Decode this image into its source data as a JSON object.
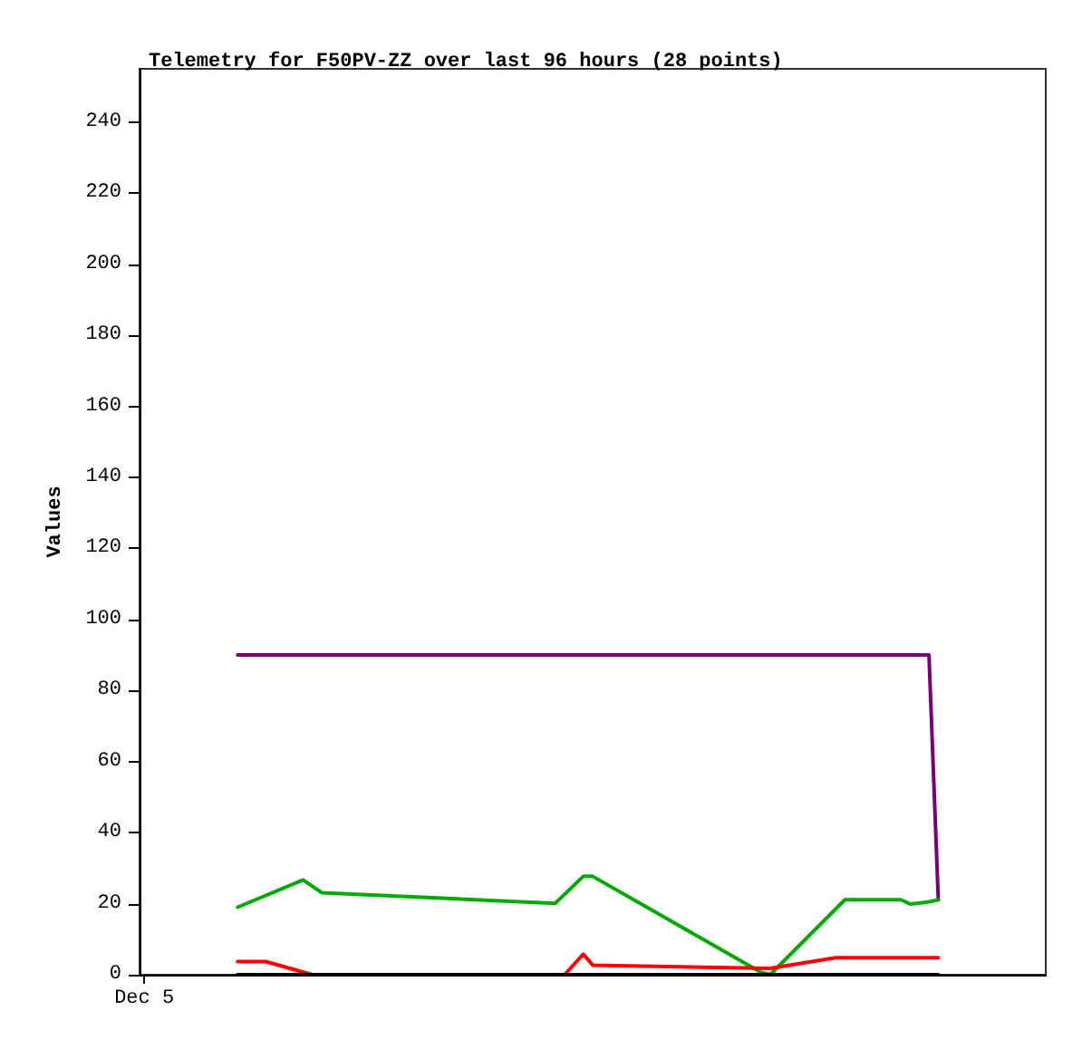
{
  "chart_data": {
    "type": "line",
    "title": "Telemetry for F50PV-ZZ over last 96 hours (28 points)",
    "ylabel": "Values",
    "categories": [
      "Dec 5",
      null,
      null,
      null,
      null,
      null,
      null,
      null,
      null,
      null,
      null,
      null,
      null,
      null,
      null,
      null,
      null,
      null,
      null,
      null,
      null,
      null,
      null,
      null,
      null,
      null,
      null,
      null,
      null,
      null,
      null,
      null,
      null,
      null,
      null,
      null,
      null,
      null,
      null,
      null,
      null,
      null,
      null,
      null,
      null,
      null,
      null,
      null,
      null,
      null,
      null,
      null,
      null,
      null,
      null,
      null,
      null,
      null,
      null,
      null,
      null,
      null,
      null,
      null,
      null,
      null,
      null,
      null,
      null,
      null,
      null,
      null,
      null,
      null,
      null,
      null,
      null,
      null,
      null,
      null,
      null,
      null,
      null,
      null,
      null,
      null,
      null,
      null,
      null,
      null,
      null,
      null,
      null,
      null,
      null,
      null,
      null
    ],
    "ylim": [
      0,
      255
    ],
    "yticks": [
      0,
      20,
      40,
      60,
      80,
      100,
      120,
      140,
      160,
      180,
      200,
      220,
      240
    ],
    "marker": "none",
    "line_style": "solid",
    "series": [
      {
        "color": "#780078",
        "values": [
          null,
          null,
          null,
          null,
          null,
          null,
          null,
          null,
          null,
          null,
          90,
          null,
          null,
          null,
          null,
          null,
          null,
          null,
          null,
          null,
          null,
          null,
          null,
          null,
          null,
          null,
          null,
          null,
          null,
          null,
          null,
          null,
          null,
          null,
          null,
          null,
          null,
          null,
          null,
          null,
          null,
          null,
          null,
          null,
          null,
          null,
          null,
          null,
          null,
          null,
          null,
          null,
          null,
          null,
          null,
          null,
          null,
          null,
          null,
          null,
          null,
          null,
          null,
          null,
          null,
          null,
          null,
          null,
          null,
          null,
          null,
          null,
          null,
          null,
          null,
          null,
          null,
          null,
          null,
          null,
          null,
          null,
          null,
          null,
          90,
          21.1,
          null,
          null,
          null,
          null,
          null,
          null,
          null,
          null,
          null,
          null,
          null
        ]
      },
      {
        "color": "#00aa00",
        "values": [
          null,
          null,
          null,
          null,
          null,
          null,
          null,
          null,
          null,
          null,
          19,
          null,
          null,
          null,
          null,
          null,
          null,
          26.7,
          null,
          23.1,
          null,
          null,
          null,
          null,
          null,
          null,
          null,
          null,
          null,
          null,
          null,
          null,
          null,
          null,
          null,
          null,
          null,
          null,
          null,
          null,
          null,
          null,
          null,
          null,
          20.1,
          null,
          null,
          27.7,
          27.7,
          null,
          null,
          null,
          null,
          null,
          null,
          null,
          null,
          null,
          null,
          null,
          null,
          null,
          null,
          null,
          null,
          null,
          0.7,
          0,
          null,
          null,
          null,
          null,
          null,
          null,
          null,
          21.1,
          null,
          null,
          null,
          null,
          null,
          21.1,
          19.9,
          null,
          20.5,
          21.1,
          null,
          null,
          null,
          null,
          null,
          null,
          null,
          null,
          null,
          null,
          null
        ]
      },
      {
        "color": "#ff0000",
        "values": [
          null,
          null,
          null,
          null,
          null,
          null,
          null,
          null,
          null,
          null,
          3.7,
          null,
          null,
          3.7,
          null,
          null,
          null,
          null,
          0,
          null,
          null,
          null,
          null,
          null,
          null,
          null,
          null,
          null,
          null,
          null,
          null,
          null,
          null,
          null,
          null,
          null,
          null,
          null,
          null,
          null,
          null,
          null,
          null,
          null,
          null,
          0,
          null,
          5.8,
          2.7,
          null,
          null,
          null,
          2.5,
          null,
          null,
          null,
          null,
          null,
          null,
          null,
          null,
          null,
          null,
          null,
          null,
          null,
          null,
          1.8,
          null,
          null,
          null,
          null,
          null,
          null,
          4.8,
          null,
          null,
          null,
          null,
          null,
          null,
          null,
          null,
          null,
          null,
          4.8,
          null,
          null,
          null,
          null,
          null,
          null,
          null,
          null,
          null,
          null,
          null
        ]
      },
      {
        "color": "#000000",
        "values": [
          null,
          null,
          null,
          null,
          null,
          null,
          null,
          null,
          null,
          null,
          0,
          null,
          null,
          null,
          null,
          null,
          null,
          null,
          null,
          null,
          null,
          null,
          null,
          null,
          null,
          null,
          null,
          null,
          null,
          null,
          null,
          null,
          null,
          null,
          null,
          null,
          null,
          null,
          null,
          null,
          null,
          null,
          null,
          null,
          null,
          null,
          null,
          null,
          null,
          null,
          null,
          null,
          null,
          null,
          null,
          null,
          null,
          null,
          null,
          null,
          null,
          null,
          null,
          null,
          null,
          null,
          null,
          null,
          null,
          null,
          null,
          null,
          null,
          null,
          null,
          null,
          null,
          null,
          null,
          null,
          null,
          null,
          null,
          null,
          null,
          0,
          null,
          null,
          null,
          null,
          null,
          null,
          null,
          null,
          null,
          null,
          null
        ]
      }
    ]
  }
}
